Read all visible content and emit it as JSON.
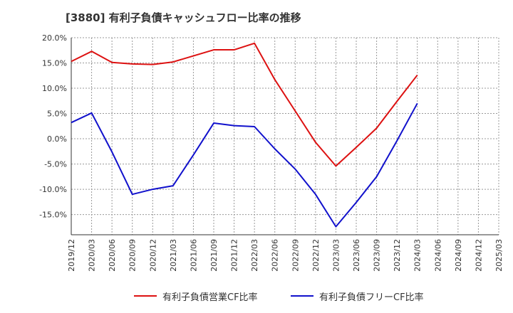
{
  "chart_data": {
    "type": "line",
    "title": "[3880]  有利子負債キャッシュフロー比率の推移",
    "xlabel": "",
    "ylabel": "",
    "ylim": [
      -19,
      20
    ],
    "y_ticks": [
      "20.0%",
      "15.0%",
      "10.0%",
      "5.0%",
      "0.0%",
      "-5.0%",
      "-10.0%",
      "-15.0%"
    ],
    "y_tick_values": [
      20,
      15,
      10,
      5,
      0,
      -5,
      -10,
      -15
    ],
    "x": [
      "2019/12",
      "2020/03",
      "2020/06",
      "2020/09",
      "2020/12",
      "2021/03",
      "2021/06",
      "2021/09",
      "2021/12",
      "2022/03",
      "2022/06",
      "2022/09",
      "2022/12",
      "2023/03",
      "2023/06",
      "2023/09",
      "2023/12",
      "2024/03",
      "2024/06",
      "2024/09",
      "2024/12",
      "2025/03"
    ],
    "grid": true,
    "legend_position": "bottom",
    "series": [
      {
        "name": "有利子負債営業CF比率",
        "color": "#dd1111",
        "values": [
          15.3,
          17.3,
          15.1,
          14.8,
          14.7,
          15.2,
          16.4,
          17.6,
          17.6,
          18.9,
          11.7,
          5.5,
          -0.7,
          -5.4,
          -1.7,
          2.1,
          7.4,
          12.6,
          null,
          null,
          null,
          null
        ]
      },
      {
        "name": "有利子負債フリーCF比率",
        "color": "#1111cc",
        "values": [
          3.2,
          5.1,
          -2.6,
          -11.0,
          -10.0,
          -9.3,
          -3.2,
          3.1,
          2.6,
          2.4,
          -2.0,
          -6.0,
          -11.0,
          -17.4,
          -12.6,
          -7.5,
          -0.4,
          7.0,
          null,
          null,
          null,
          null
        ]
      }
    ]
  }
}
